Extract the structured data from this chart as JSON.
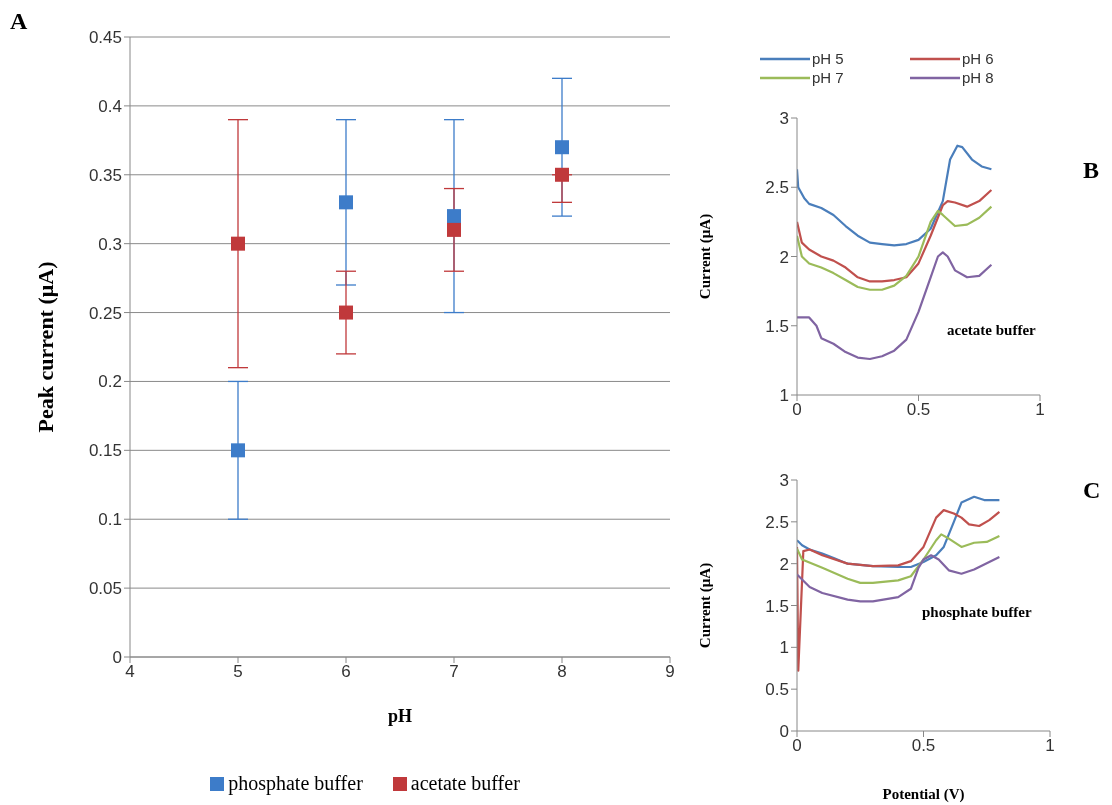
{
  "chart_data": [
    {
      "type": "scatter",
      "xlabel": "pH",
      "ylabel": "Peak current (μA)",
      "xlim": [
        4,
        9
      ],
      "xticks": [
        4,
        5,
        6,
        7,
        8,
        9
      ],
      "ylim": [
        0,
        0.45
      ],
      "yticks": [
        0,
        0.05,
        0.1,
        0.15,
        0.2,
        0.25,
        0.3,
        0.35,
        0.4,
        0.45
      ],
      "grid": "y",
      "legend": "bottom",
      "marker": "square",
      "annotations": [
        "A"
      ],
      "series": [
        {
          "name": "phosphate buffer",
          "color": "#3d7cc9",
          "x": [
            5,
            6,
            7,
            8
          ],
          "values": [
            0.15,
            0.33,
            0.32,
            0.37
          ],
          "errors": [
            [
              0.1,
              0.2
            ],
            [
              0.27,
              0.39
            ],
            [
              0.25,
              0.39
            ],
            [
              0.32,
              0.42
            ]
          ]
        },
        {
          "name": "acetate buffer",
          "color": "#c0393b",
          "x": [
            5,
            6,
            7,
            8
          ],
          "values": [
            0.3,
            0.25,
            0.31,
            0.35
          ],
          "errors": [
            [
              0.21,
              0.39
            ],
            [
              0.22,
              0.28
            ],
            [
              0.28,
              0.34
            ],
            [
              0.33,
              0.35
            ]
          ]
        }
      ]
    },
    {
      "type": "line",
      "ylabel": "Current (μA)",
      "xlim": [
        0,
        1
      ],
      "xticks": [
        0,
        0.5,
        1
      ],
      "ylim": [
        1,
        3
      ],
      "yticks": [
        1,
        1.5,
        2,
        2.5,
        3
      ],
      "grid": false,
      "legend": "top",
      "annotations": [
        "B",
        "acetate buffer"
      ],
      "series": [
        {
          "name": "pH 5",
          "color": "#4a7ebb",
          "x": [
            0,
            0.005,
            0.03,
            0.05,
            0.1,
            0.15,
            0.2,
            0.25,
            0.3,
            0.35,
            0.4,
            0.45,
            0.5,
            0.55,
            0.6,
            0.63,
            0.66,
            0.68,
            0.72,
            0.76,
            0.8
          ],
          "values": [
            2.63,
            2.5,
            2.42,
            2.38,
            2.35,
            2.3,
            2.22,
            2.15,
            2.1,
            2.09,
            2.08,
            2.09,
            2.12,
            2.2,
            2.4,
            2.7,
            2.8,
            2.79,
            2.7,
            2.65,
            2.63
          ]
        },
        {
          "name": "pH 6",
          "color": "#c0504d",
          "x": [
            0,
            0.02,
            0.05,
            0.1,
            0.15,
            0.2,
            0.25,
            0.3,
            0.35,
            0.4,
            0.45,
            0.5,
            0.55,
            0.6,
            0.62,
            0.65,
            0.7,
            0.75,
            0.8
          ],
          "values": [
            2.25,
            2.1,
            2.05,
            2,
            1.97,
            1.92,
            1.85,
            1.82,
            1.82,
            1.83,
            1.85,
            1.95,
            2.15,
            2.37,
            2.4,
            2.39,
            2.36,
            2.4,
            2.48
          ]
        },
        {
          "name": "pH 7",
          "color": "#9bbb59",
          "x": [
            0,
            0.02,
            0.05,
            0.1,
            0.15,
            0.2,
            0.25,
            0.3,
            0.35,
            0.4,
            0.45,
            0.5,
            0.55,
            0.58,
            0.6,
            0.65,
            0.7,
            0.75,
            0.8
          ],
          "values": [
            2.15,
            2,
            1.95,
            1.92,
            1.88,
            1.83,
            1.78,
            1.76,
            1.76,
            1.79,
            1.86,
            2,
            2.25,
            2.33,
            2.3,
            2.22,
            2.23,
            2.28,
            2.36
          ]
        },
        {
          "name": "pH 8",
          "color": "#8064a2",
          "x": [
            0,
            0.05,
            0.08,
            0.1,
            0.15,
            0.2,
            0.25,
            0.3,
            0.35,
            0.4,
            0.45,
            0.5,
            0.55,
            0.58,
            0.6,
            0.62,
            0.65,
            0.7,
            0.75,
            0.8
          ],
          "values": [
            1.56,
            1.56,
            1.5,
            1.41,
            1.37,
            1.31,
            1.27,
            1.26,
            1.28,
            1.32,
            1.4,
            1.6,
            1.85,
            2,
            2.03,
            2,
            1.9,
            1.85,
            1.86,
            1.94
          ]
        }
      ]
    },
    {
      "type": "line",
      "xlabel": "Potential (V)",
      "ylabel": "Current (μA)",
      "xlim": [
        0,
        1
      ],
      "xticks": [
        0,
        0.5,
        1
      ],
      "ylim": [
        0,
        3
      ],
      "yticks": [
        0,
        0.5,
        1,
        1.5,
        2,
        2.5,
        3
      ],
      "grid": false,
      "annotations": [
        "C",
        "phosphate buffer"
      ],
      "series": [
        {
          "color": "#4a7ebb",
          "x": [
            0,
            0.02,
            0.05,
            0.1,
            0.15,
            0.2,
            0.3,
            0.4,
            0.45,
            0.5,
            0.55,
            0.58,
            0.62,
            0.65,
            0.7,
            0.74,
            0.8
          ],
          "values": [
            2.28,
            2.22,
            2.17,
            2.12,
            2.06,
            2,
            1.97,
            1.96,
            1.96,
            2.02,
            2.1,
            2.2,
            2.5,
            2.73,
            2.8,
            2.76,
            2.76
          ]
        },
        {
          "color": "#c0504d",
          "x": [
            0,
            0.005,
            0.025,
            0.05,
            0.1,
            0.2,
            0.3,
            0.4,
            0.45,
            0.5,
            0.55,
            0.58,
            0.62,
            0.65,
            0.68,
            0.72,
            0.76,
            0.8
          ],
          "values": [
            2.2,
            0.72,
            2.15,
            2.17,
            2.1,
            2,
            1.97,
            1.98,
            2.03,
            2.2,
            2.55,
            2.64,
            2.6,
            2.55,
            2.47,
            2.45,
            2.52,
            2.62
          ]
        },
        {
          "color": "#9bbb59",
          "x": [
            0,
            0.02,
            0.1,
            0.2,
            0.25,
            0.3,
            0.4,
            0.45,
            0.5,
            0.55,
            0.57,
            0.6,
            0.65,
            0.7,
            0.75,
            0.8
          ],
          "values": [
            2.18,
            2.05,
            1.95,
            1.82,
            1.77,
            1.77,
            1.8,
            1.85,
            2.05,
            2.28,
            2.35,
            2.3,
            2.2,
            2.25,
            2.26,
            2.33
          ]
        },
        {
          "color": "#8064a2",
          "x": [
            0,
            0.05,
            0.1,
            0.2,
            0.25,
            0.3,
            0.4,
            0.45,
            0.48,
            0.5,
            0.53,
            0.56,
            0.6,
            0.65,
            0.7,
            0.8
          ],
          "values": [
            1.87,
            1.72,
            1.65,
            1.57,
            1.55,
            1.55,
            1.6,
            1.7,
            1.95,
            2.05,
            2.1,
            2.05,
            1.92,
            1.88,
            1.93,
            2.08
          ]
        }
      ]
    }
  ]
}
